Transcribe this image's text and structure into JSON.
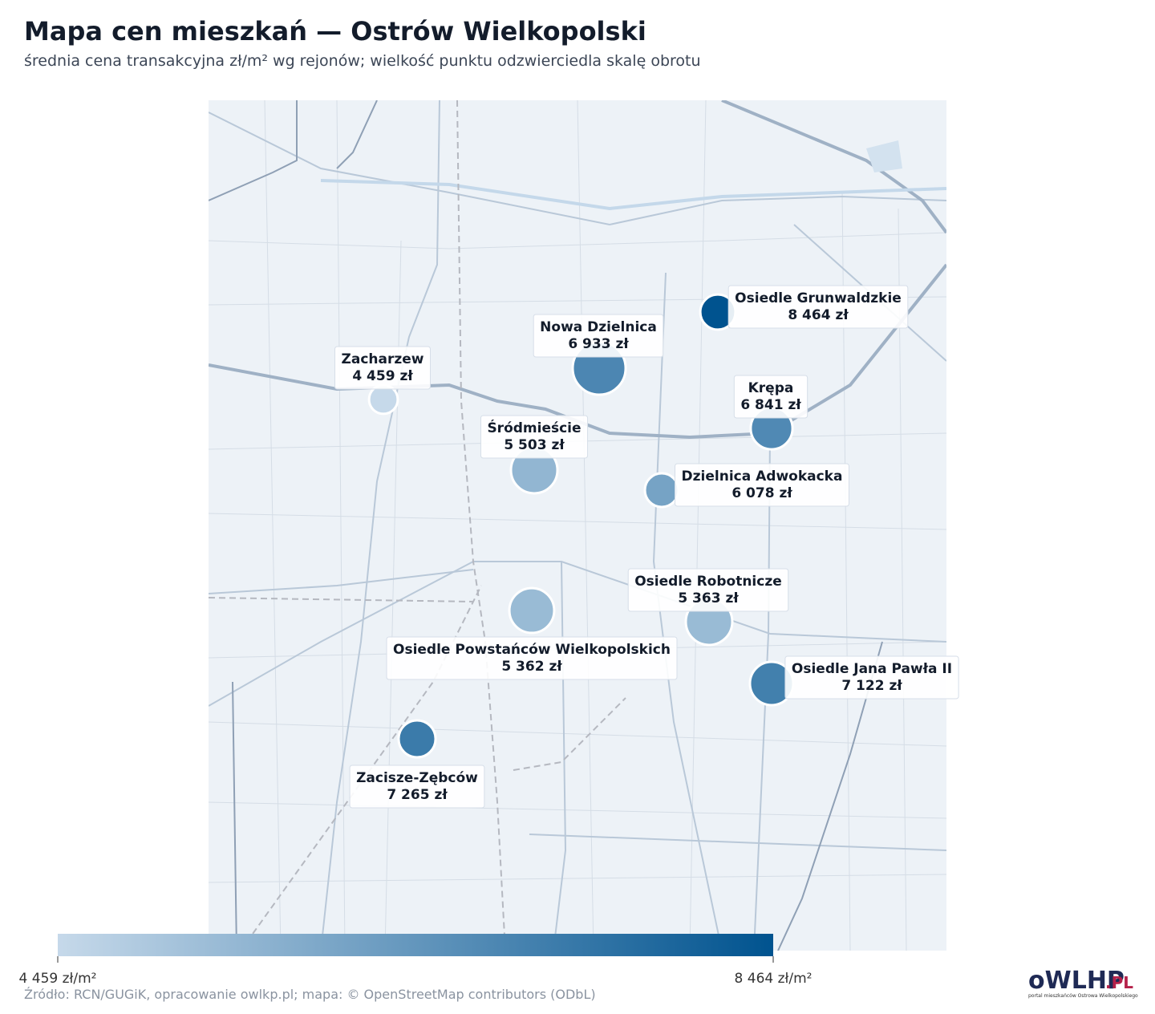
{
  "header": {
    "title": "Mapa cen mieszkań — Ostrów Wielkopolski",
    "subtitle": "średnia cena transakcyjna zł/m² wg rejonów; wielkość punktu odzwierciedla skalę obrotu"
  },
  "districts": [
    {
      "name": "Osiedle Grunwaldzkie",
      "value": 8464,
      "value_label": "8 464 zł",
      "size": 4.8
    },
    {
      "name": "Nowa Dzielnica",
      "value": 6933,
      "value_label": "6 933 zł",
      "size": 10.9
    },
    {
      "name": "Zacharzew",
      "value": 4459,
      "value_label": "4 459 zł",
      "size": 3.2
    },
    {
      "name": "Krępa",
      "value": 6841,
      "value_label": "6 841 zł",
      "size": 6.8
    },
    {
      "name": "Śródmieście",
      "value": 5503,
      "value_label": "5 503 zł",
      "size": 8.4
    },
    {
      "name": "Dzielnica Adwokacka",
      "value": 6078,
      "value_label": "6 078 zł",
      "size": 4.4
    },
    {
      "name": "Osiedle Robotnicze",
      "value": 5363,
      "value_label": "5 363 zł",
      "size": 8.4
    },
    {
      "name": "Osiedle Powstańców Wielkopolskich",
      "value": 5362,
      "value_label": "5 362 zł",
      "size": 7.8
    },
    {
      "name": "Osiedle Jana Pawła II",
      "value": 7122,
      "value_label": "7 122 zł",
      "size": 7.3
    },
    {
      "name": "Zacisze-Zębców",
      "value": 7265,
      "value_label": "7 265 zł",
      "size": 5.3
    }
  ],
  "colorbar": {
    "range": [
      4459,
      8464
    ],
    "colors": [
      "#c6d9ea",
      "#00538f"
    ],
    "ticks": [
      {
        "value": 4459,
        "label": "4 459 zł/m²"
      },
      {
        "value": 8464,
        "label": "8 464 zł/m²"
      }
    ]
  },
  "footer": {
    "source": "Źródło: RCN/GUGiK, opracowanie owlkp.pl; mapa: © OpenStreetMap contributors (ODbL)",
    "logo": "oWLHP",
    "logo_suffix": ".PL",
    "logo_tagline": "portal mieszkańców Ostrowa Wielkopolskiego"
  }
}
